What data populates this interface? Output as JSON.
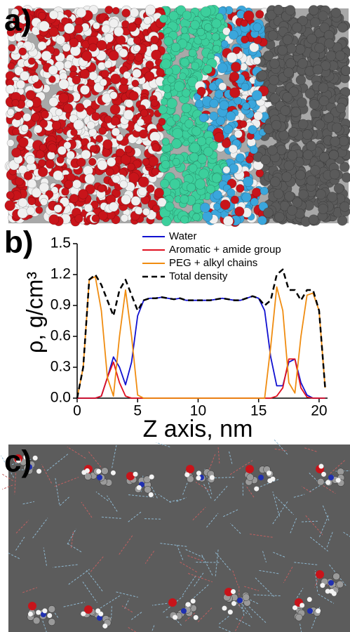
{
  "panel_labels": [
    "a)",
    "b)",
    "c)"
  ],
  "chart_data": {
    "type": "line",
    "x_label": "Z axis, nm",
    "y_label": "ρ, g/cm³",
    "x": [
      0,
      0.5,
      1,
      1.5,
      2,
      2.5,
      3,
      3.5,
      4,
      4.5,
      5,
      5.5,
      6,
      6.5,
      7,
      7.5,
      8,
      8.5,
      9,
      9.5,
      10,
      10.5,
      11,
      11.5,
      12,
      12.5,
      13,
      13.5,
      14,
      14.5,
      15,
      15.5,
      16,
      16.5,
      17,
      17.5,
      18,
      18.5,
      19,
      19.5,
      20,
      20.5
    ],
    "series": [
      {
        "name": "Water",
        "color": "#1010d0",
        "values": [
          0,
          0,
          0,
          0,
          0.02,
          0.2,
          0.4,
          0.3,
          0.13,
          0.35,
          0.8,
          0.95,
          0.97,
          0.97,
          0.98,
          0.97,
          0.96,
          0.97,
          0.95,
          0.95,
          0.95,
          0.95,
          0.95,
          0.96,
          0.97,
          0.96,
          0.95,
          0.95,
          0.97,
          0.99,
          0.97,
          0.85,
          0.4,
          0.12,
          0.12,
          0.35,
          0.38,
          0.15,
          0.03,
          0,
          0,
          0
        ]
      },
      {
        "name": "Aromatic + amide group",
        "color": "#e01020",
        "values": [
          0,
          0,
          0,
          0,
          0.02,
          0.2,
          0.35,
          0.15,
          0.02,
          0,
          0,
          0,
          0,
          0,
          0,
          0,
          0,
          0,
          0,
          0,
          0,
          0,
          0,
          0,
          0,
          0,
          0,
          0,
          0,
          0,
          0,
          0,
          0,
          0.02,
          0.1,
          0.38,
          0.38,
          0.1,
          0.01,
          0,
          0,
          0
        ]
      },
      {
        "name": "PEG + alkyl chains",
        "color": "#f08c10",
        "values": [
          0,
          0.3,
          1.15,
          1.18,
          0.85,
          0.2,
          0.02,
          0.6,
          1.05,
          0.6,
          0.03,
          0,
          0,
          0,
          0,
          0,
          0,
          0,
          0,
          0,
          0,
          0,
          0,
          0,
          0,
          0,
          0,
          0,
          0,
          0,
          0,
          0,
          0.5,
          1.08,
          0.85,
          0.15,
          0.05,
          0.6,
          1.0,
          1.02,
          0.85,
          0.1
        ]
      },
      {
        "name": "Total density",
        "color": "#000000",
        "dashed": true,
        "values": [
          0,
          0.3,
          1.15,
          1.2,
          1.1,
          0.95,
          0.8,
          1.05,
          1.15,
          1.0,
          0.85,
          0.95,
          0.97,
          0.97,
          0.98,
          0.97,
          0.96,
          0.97,
          0.95,
          0.95,
          0.95,
          0.95,
          0.95,
          0.96,
          0.97,
          0.96,
          0.95,
          0.95,
          0.97,
          0.99,
          0.97,
          0.9,
          0.95,
          1.2,
          1.25,
          1.05,
          1.05,
          0.95,
          1.05,
          1.05,
          0.85,
          0.1
        ]
      }
    ],
    "xlim": [
      0,
      20.7
    ],
    "xticks": [
      0,
      5,
      10,
      15,
      20
    ],
    "ylim": [
      0,
      1.5
    ],
    "yticks": [
      {
        "value": 0,
        "label": "0.0"
      },
      0.3,
      0.6,
      0.9,
      1.2,
      1.5
    ]
  }
}
